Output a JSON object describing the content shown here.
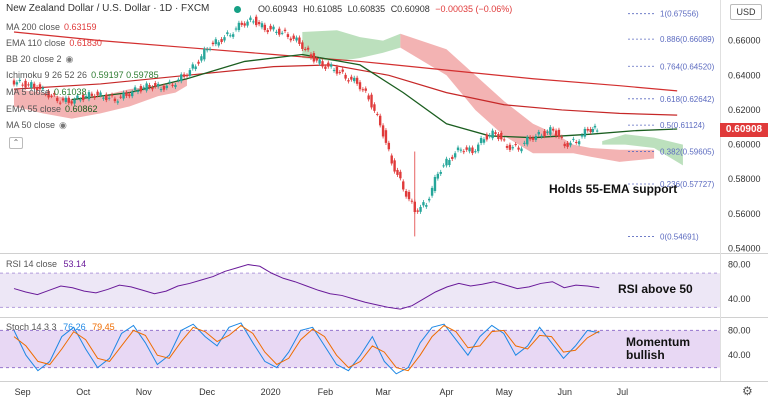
{
  "header": {
    "title": "New Zealand Dollar / U.S. Dollar · 1D · FXCM",
    "ohlc": {
      "o": "O0.60943",
      "h": "H0.61085",
      "l": "L0.60835",
      "c": "C0.60908",
      "chg": "−0.00035 (−0.06%)"
    },
    "currency_button": "USD"
  },
  "legend": [
    {
      "label": "MA 200 close",
      "value": "0.63159",
      "color": "#e03a3a"
    },
    {
      "label": "EMA 110 close",
      "value": "0.61830",
      "color": "#e03a3a"
    },
    {
      "label": "BB 20 close 2",
      "value": "",
      "color": "#999999"
    },
    {
      "label": "Ichimoku 9 26 52 26",
      "value": "0.59197  0.59785",
      "color": "#2e7d32"
    },
    {
      "label": "MA 5 close",
      "value": "0.61038",
      "color": "#2e7d32"
    },
    {
      "label": "EMA 55 close",
      "value": "0.60862",
      "color": "#1b5e20"
    },
    {
      "label": "MA 50 close",
      "value": "",
      "color": "#999999"
    }
  ],
  "notes": {
    "support": "Holds 55-EMA support",
    "rsi": "RSI above 50",
    "stoch": "Momentum bullish"
  },
  "last_price": "0.60908",
  "rsi_legend": {
    "label": "RSI 14 close",
    "value": "53.14"
  },
  "stoch_legend": {
    "label": "Stoch 14 3 3",
    "k": "76.26",
    "d": "79.45"
  },
  "colors": {
    "up": "#26a69a",
    "down": "#e03a3a",
    "cloud_bear": "#ef9a9a",
    "cloud_bull": "#a5d6a7",
    "ema55": "#1b5e20",
    "ema110": "#c62828",
    "ma200": "#d32f2f",
    "fib": "#5c6bc0",
    "rsi": "#6a1b9a",
    "rsi_band": "#ede7f6",
    "stoch_k": "#1e88e5",
    "stoch_d": "#ef6c00",
    "stoch_band": "#e8d8f4"
  },
  "chart_data": [
    {
      "type": "candlestick",
      "title": "New Zealand Dollar / U.S. Dollar · 1D · FXCM",
      "x_ticks": [
        "Sep",
        "Oct",
        "Nov",
        "Dec",
        "2020",
        "Feb",
        "Mar",
        "Apr",
        "May",
        "Jun",
        "Jul"
      ],
      "y_ticks": [
        0.54,
        0.56,
        0.58,
        0.6,
        0.62,
        0.64,
        0.66
      ],
      "ylim": [
        0.538,
        0.68
      ],
      "close_path": [
        {
          "t": 0,
          "v": 0.637
        },
        {
          "t": 4,
          "v": 0.635
        },
        {
          "t": 8,
          "v": 0.634
        },
        {
          "t": 12,
          "v": 0.63
        },
        {
          "t": 16,
          "v": 0.626
        },
        {
          "t": 20,
          "v": 0.625
        },
        {
          "t": 24,
          "v": 0.627
        },
        {
          "t": 28,
          "v": 0.629
        },
        {
          "t": 32,
          "v": 0.628
        },
        {
          "t": 36,
          "v": 0.626
        },
        {
          "t": 40,
          "v": 0.629
        },
        {
          "t": 44,
          "v": 0.632
        },
        {
          "t": 48,
          "v": 0.634
        },
        {
          "t": 52,
          "v": 0.633
        },
        {
          "t": 56,
          "v": 0.635
        },
        {
          "t": 60,
          "v": 0.64
        },
        {
          "t": 64,
          "v": 0.646
        },
        {
          "t": 68,
          "v": 0.656
        },
        {
          "t": 72,
          "v": 0.66
        },
        {
          "t": 76,
          "v": 0.664
        },
        {
          "t": 80,
          "v": 0.67
        },
        {
          "t": 84,
          "v": 0.672
        },
        {
          "t": 88,
          "v": 0.667
        },
        {
          "t": 92,
          "v": 0.666
        },
        {
          "t": 96,
          "v": 0.663
        },
        {
          "t": 100,
          "v": 0.659
        },
        {
          "t": 104,
          "v": 0.651
        },
        {
          "t": 108,
          "v": 0.646
        },
        {
          "t": 112,
          "v": 0.644
        },
        {
          "t": 116,
          "v": 0.639
        },
        {
          "t": 120,
          "v": 0.636
        },
        {
          "t": 124,
          "v": 0.627
        },
        {
          "t": 128,
          "v": 0.612
        },
        {
          "t": 132,
          "v": 0.59
        },
        {
          "t": 136,
          "v": 0.575
        },
        {
          "t": 140,
          "v": 0.562
        },
        {
          "t": 144,
          "v": 0.566
        },
        {
          "t": 148,
          "v": 0.584
        },
        {
          "t": 152,
          "v": 0.592
        },
        {
          "t": 156,
          "v": 0.598
        },
        {
          "t": 160,
          "v": 0.596
        },
        {
          "t": 164,
          "v": 0.604
        },
        {
          "t": 168,
          "v": 0.607
        },
        {
          "t": 172,
          "v": 0.599
        },
        {
          "t": 176,
          "v": 0.598
        },
        {
          "t": 180,
          "v": 0.604
        },
        {
          "t": 184,
          "v": 0.606
        },
        {
          "t": 188,
          "v": 0.609
        },
        {
          "t": 192,
          "v": 0.6
        },
        {
          "t": 196,
          "v": 0.602
        },
        {
          "t": 200,
          "v": 0.609
        },
        {
          "t": 203,
          "v": 0.609
        }
      ],
      "fib_levels": [
        {
          "ratio": "1",
          "price": "0.67556",
          "value": 0.67556
        },
        {
          "ratio": "0.886",
          "price": "0.66089",
          "value": 0.66089
        },
        {
          "ratio": "0.764",
          "price": "0.64520",
          "value": 0.6452
        },
        {
          "ratio": "0.618",
          "price": "0.62642",
          "value": 0.62642
        },
        {
          "ratio": "0.5",
          "price": "0.61124",
          "value": 0.61124
        },
        {
          "ratio": "0.382",
          "price": "0.59605",
          "value": 0.59605
        },
        {
          "ratio": "0.236",
          "price": "0.57727",
          "value": 0.57727
        },
        {
          "ratio": "0",
          "price": "0.54691",
          "value": 0.54691
        }
      ]
    },
    {
      "type": "line",
      "title": "RSI 14 close",
      "y_ticks": [
        40,
        80
      ],
      "ylim": [
        20,
        90
      ],
      "band": [
        30,
        70
      ],
      "values": [
        52,
        48,
        45,
        50,
        55,
        53,
        49,
        47,
        51,
        56,
        54,
        50,
        46,
        49,
        55,
        58,
        62,
        66,
        72,
        76,
        80,
        78,
        70,
        64,
        60,
        55,
        50,
        46,
        44,
        40,
        36,
        33,
        30,
        28,
        32,
        40,
        48,
        54,
        58,
        55,
        57,
        60,
        56,
        52,
        54,
        58,
        60,
        53,
        56,
        55,
        53
      ]
    },
    {
      "type": "line",
      "title": "Stoch 14 3 3",
      "y_ticks": [
        40,
        80
      ],
      "ylim": [
        0,
        100
      ],
      "band": [
        20,
        80
      ],
      "series": [
        {
          "name": "K",
          "values": [
            80,
            40,
            15,
            30,
            70,
            85,
            50,
            20,
            35,
            75,
            88,
            60,
            25,
            40,
            80,
            90,
            70,
            55,
            85,
            92,
            60,
            30,
            20,
            45,
            80,
            85,
            55,
            25,
            15,
            40,
            70,
            30,
            10,
            20,
            60,
            85,
            90,
            65,
            40,
            70,
            88,
            75,
            40,
            55,
            85,
            60,
            35,
            55,
            80,
            76
          ]
        },
        {
          "name": "D",
          "values": [
            70,
            55,
            30,
            25,
            50,
            78,
            65,
            35,
            30,
            55,
            80,
            72,
            40,
            35,
            62,
            85,
            78,
            62,
            72,
            88,
            75,
            45,
            25,
            35,
            65,
            82,
            70,
            40,
            20,
            30,
            55,
            45,
            20,
            15,
            40,
            70,
            88,
            78,
            52,
            55,
            78,
            80,
            55,
            50,
            72,
            70,
            45,
            48,
            68,
            79
          ]
        }
      ]
    }
  ]
}
